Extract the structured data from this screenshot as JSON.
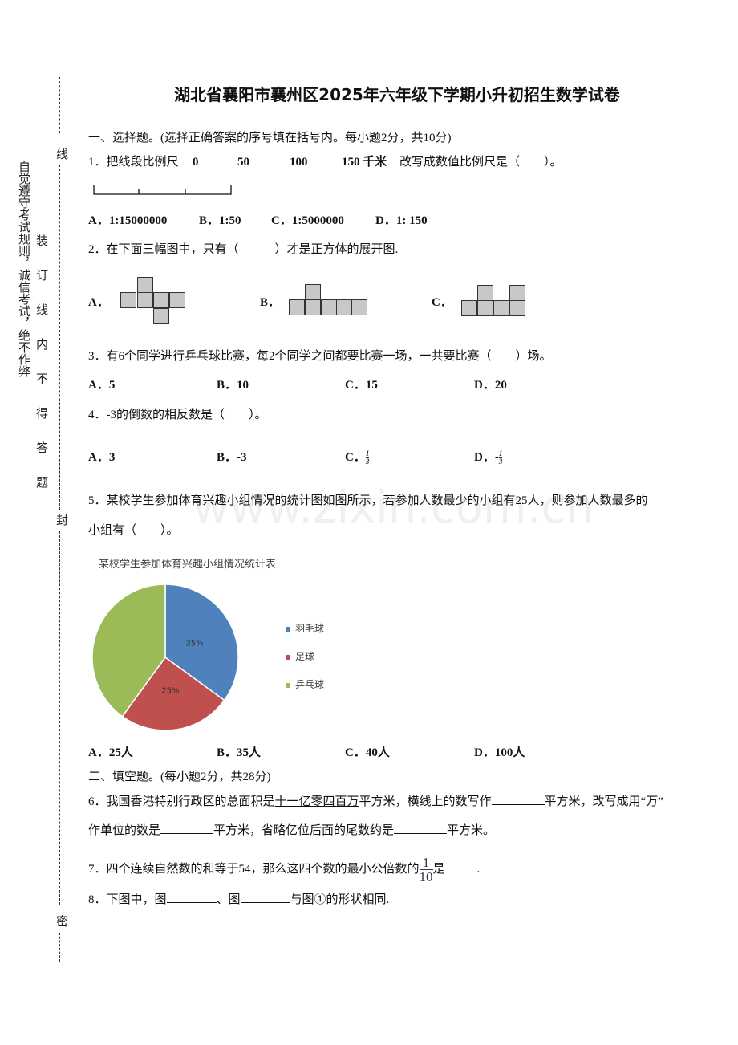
{
  "title": "湖北省襄阳市襄州区2025年六年级下学期小升初招生数学试卷",
  "margin": {
    "rule": "自觉遵守考试规则，诚信考试，绝不作弊",
    "binding": "装订线内不得答题",
    "marks": [
      "线",
      "封",
      "密"
    ]
  },
  "watermark": "www.zixin.com.cn",
  "section1": "一、选择题。(选择正确答案的序号填在括号内。每小题2分，共10分)",
  "q1": {
    "text": "1．把线段比例尺",
    "ticks": [
      "0",
      "50",
      "100",
      "150 千米"
    ],
    "tail": "改写成数值比例尺是（　　）。",
    "options": [
      "A．1:15000000",
      "B．1:50",
      "C．1:5000000",
      "D．1: 150"
    ]
  },
  "q2": {
    "text": "2．在下面三幅图中，只有（　　　）才是正方体的展开图.",
    "options": [
      "A．",
      "B．",
      "C．"
    ]
  },
  "q3": {
    "text": "3．有6个同学进行乒乓球比赛，每2个同学之间都要比赛一场，一共要比赛（　　）场。",
    "options": [
      "A．5",
      "B．10",
      "C．15",
      "D．20"
    ]
  },
  "q4": {
    "text": "4．-3的倒数的相反数是（　　）。",
    "options": [
      "A．3",
      "B．-3",
      "C．",
      "D．-"
    ],
    "frac_num": "1",
    "frac_den": "3"
  },
  "q5": {
    "text1": "5．某校学生参加体育兴趣小组情况的统计图如图所示，若参加人数最少的小组有25人，则参加人数最多的",
    "text2": "小组有（　　）。",
    "options": [
      "A．25人",
      "B．35人",
      "C．40人",
      "D．100人"
    ]
  },
  "chart_data": {
    "type": "pie",
    "title": "某校学生参加体育兴趣小组情况统计表",
    "legend": "right",
    "slices": [
      {
        "name": "羽毛球",
        "value": 35,
        "label": "35%",
        "color": "#4f81bd"
      },
      {
        "name": "足球",
        "value": 25,
        "label": "25%",
        "color": "#c0504d"
      },
      {
        "name": "乒乓球",
        "value": 40,
        "label": "",
        "color": "#9bbb59"
      }
    ]
  },
  "section2": "二、填空题。(每小题2分，共28分)",
  "q6": {
    "a": "6．我国香港特别行政区的总面积是",
    "u": "十一亿零四百万",
    "b": "平方米，横线上的数写作",
    "c": "平方米，改写成用“万”",
    "d": "作单位的数是",
    "e": "平方米，省略亿位后面的尾数约是",
    "f": "平方米。"
  },
  "q7": {
    "a": "7．四个连续自然数的和等于54，那么这四个数的最小公倍数的",
    "num": "1",
    "den": "10",
    "b": "是",
    "c": "."
  },
  "q8": {
    "a": "8．下图中，图",
    "b": "、图",
    "c": "与图①的形状相同."
  }
}
